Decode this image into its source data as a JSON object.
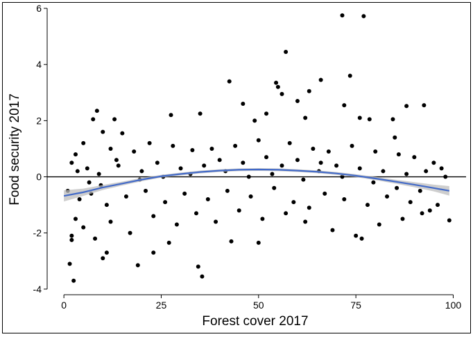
{
  "chart_data": {
    "type": "scatter",
    "title": "",
    "xlabel": "Forest cover 2017",
    "ylabel": "Food security 2017",
    "xlim": [
      -4.3,
      103.3
    ],
    "ylim": [
      -4.2,
      6.1
    ],
    "x_ticks": [
      0,
      25,
      50,
      75,
      100
    ],
    "x_tick_labels": [
      "0",
      "25",
      "50",
      "75",
      "100"
    ],
    "y_ticks": [
      -4,
      -2,
      0,
      2,
      4,
      6
    ],
    "y_tick_labels": [
      "-4",
      "-2",
      "0",
      "2",
      "4",
      "6"
    ],
    "grid": false,
    "legend": "none",
    "reference_line_y": 0,
    "point_color": "#000000",
    "fit_line_color": "#4169c8",
    "confidence_band_color": "#bdbdbd",
    "fit_line": {
      "x": [
        0,
        5,
        10,
        15,
        20,
        25,
        30,
        35,
        40,
        45,
        50,
        55,
        60,
        65,
        70,
        75,
        80,
        85,
        90,
        95,
        99
      ],
      "y": [
        -0.68,
        -0.55,
        -0.38,
        -0.24,
        -0.1,
        0.02,
        0.1,
        0.17,
        0.22,
        0.25,
        0.26,
        0.25,
        0.22,
        0.18,
        0.12,
        0.04,
        -0.06,
        -0.17,
        -0.28,
        -0.4,
        -0.5
      ],
      "ci_half_width": [
        0.2,
        0.13,
        0.09,
        0.07,
        0.06,
        0.05,
        0.05,
        0.05,
        0.05,
        0.05,
        0.05,
        0.05,
        0.05,
        0.05,
        0.05,
        0.05,
        0.06,
        0.07,
        0.09,
        0.12,
        0.17
      ]
    },
    "series": [
      {
        "points": [
          [
            71.5,
            5.75
          ],
          [
            77,
            5.72
          ],
          [
            57,
            4.45
          ],
          [
            73.5,
            3.6
          ],
          [
            42.5,
            3.4
          ],
          [
            54.5,
            3.35
          ],
          [
            55,
            3.2
          ],
          [
            63,
            3.05
          ],
          [
            56,
            2.95
          ],
          [
            66,
            3.45
          ],
          [
            72,
            2.55
          ],
          [
            60,
            2.7
          ],
          [
            92.5,
            2.55
          ],
          [
            88,
            2.52
          ],
          [
            8.5,
            2.35
          ],
          [
            27.5,
            2.2
          ],
          [
            52,
            2.25
          ],
          [
            7.5,
            2.05
          ],
          [
            13,
            2.05
          ],
          [
            35,
            2.25
          ],
          [
            46,
            2.6
          ],
          [
            76,
            2.1
          ],
          [
            78.5,
            2.05
          ],
          [
            49,
            2.0
          ],
          [
            62,
            2.1
          ],
          [
            10,
            1.6
          ],
          [
            15,
            1.55
          ],
          [
            84.5,
            2.05
          ],
          [
            85,
            1.4
          ],
          [
            3,
            0.8
          ],
          [
            5,
            1.2
          ],
          [
            12,
            1.0
          ],
          [
            18,
            0.9
          ],
          [
            22,
            1.2
          ],
          [
            28,
            1.1
          ],
          [
            33,
            0.95
          ],
          [
            38,
            1.0
          ],
          [
            44,
            1.1
          ],
          [
            50,
            1.3
          ],
          [
            58,
            1.2
          ],
          [
            64,
            1.0
          ],
          [
            68,
            0.9
          ],
          [
            74,
            1.1
          ],
          [
            80,
            0.9
          ],
          [
            86,
            0.8
          ],
          [
            90,
            0.7
          ],
          [
            95,
            0.5
          ],
          [
            97,
            0.3
          ],
          [
            2,
            0.5
          ],
          [
            6,
            0.3
          ],
          [
            9,
            0.1
          ],
          [
            14,
            0.4
          ],
          [
            20,
            0.2
          ],
          [
            24,
            0.5
          ],
          [
            30,
            0.3
          ],
          [
            36,
            0.4
          ],
          [
            40,
            0.6
          ],
          [
            46,
            0.5
          ],
          [
            52,
            0.7
          ],
          [
            56,
            0.4
          ],
          [
            60,
            0.6
          ],
          [
            66,
            0.5
          ],
          [
            70,
            0.4
          ],
          [
            76,
            0.3
          ],
          [
            82,
            0.2
          ],
          [
            88,
            0.1
          ],
          [
            93,
            0.2
          ],
          [
            98,
            0.0
          ],
          [
            1,
            -0.5
          ],
          [
            4,
            -0.8
          ],
          [
            7,
            -0.6
          ],
          [
            11,
            -1.0
          ],
          [
            16,
            -0.7
          ],
          [
            21,
            -0.5
          ],
          [
            26,
            -0.9
          ],
          [
            31,
            -0.6
          ],
          [
            37,
            -0.8
          ],
          [
            42,
            -0.5
          ],
          [
            48,
            -0.7
          ],
          [
            54,
            -0.4
          ],
          [
            59,
            -0.9
          ],
          [
            63,
            -1.1
          ],
          [
            67,
            -0.6
          ],
          [
            72,
            -0.8
          ],
          [
            78,
            -1.0
          ],
          [
            83,
            -0.7
          ],
          [
            89,
            -0.9
          ],
          [
            94,
            -1.2
          ],
          [
            99,
            -1.55
          ],
          [
            3,
            -1.5
          ],
          [
            5,
            -1.8
          ],
          [
            8,
            -2.2
          ],
          [
            12,
            -1.6
          ],
          [
            17,
            -2.0
          ],
          [
            23,
            -1.4
          ],
          [
            29,
            -1.7
          ],
          [
            34,
            -1.3
          ],
          [
            39,
            -1.6
          ],
          [
            45,
            -1.2
          ],
          [
            51,
            -1.5
          ],
          [
            57,
            -1.3
          ],
          [
            62,
            -1.6
          ],
          [
            69,
            -1.9
          ],
          [
            75,
            -2.1
          ],
          [
            81,
            -1.7
          ],
          [
            87,
            -1.5
          ],
          [
            92,
            -1.3
          ],
          [
            96,
            -1.0
          ],
          [
            2,
            -2.1
          ],
          [
            2,
            -2.25
          ],
          [
            1.5,
            -3.1
          ],
          [
            2.5,
            -3.7
          ],
          [
            10,
            -2.9
          ],
          [
            11,
            -2.7
          ],
          [
            19,
            -3.15
          ],
          [
            23,
            -2.7
          ],
          [
            27,
            -2.35
          ],
          [
            34.5,
            -3.2
          ],
          [
            35.5,
            -3.55
          ],
          [
            43,
            -2.3
          ],
          [
            50,
            -2.35
          ],
          [
            76.5,
            -2.2
          ],
          [
            3.5,
            0.2
          ],
          [
            6.5,
            -0.2
          ],
          [
            9.5,
            -0.3
          ],
          [
            13.5,
            0.6
          ],
          [
            19.5,
            -0.1
          ],
          [
            25.5,
            0.0
          ],
          [
            32.5,
            0.1
          ],
          [
            41.5,
            0.2
          ],
          [
            47.5,
            0.0
          ],
          [
            53.5,
            0.1
          ],
          [
            61.5,
            -0.1
          ],
          [
            65.5,
            0.2
          ],
          [
            71.5,
            0.0
          ],
          [
            79.5,
            -0.2
          ],
          [
            85.5,
            -0.4
          ],
          [
            91.5,
            -0.5
          ]
        ]
      }
    ]
  }
}
